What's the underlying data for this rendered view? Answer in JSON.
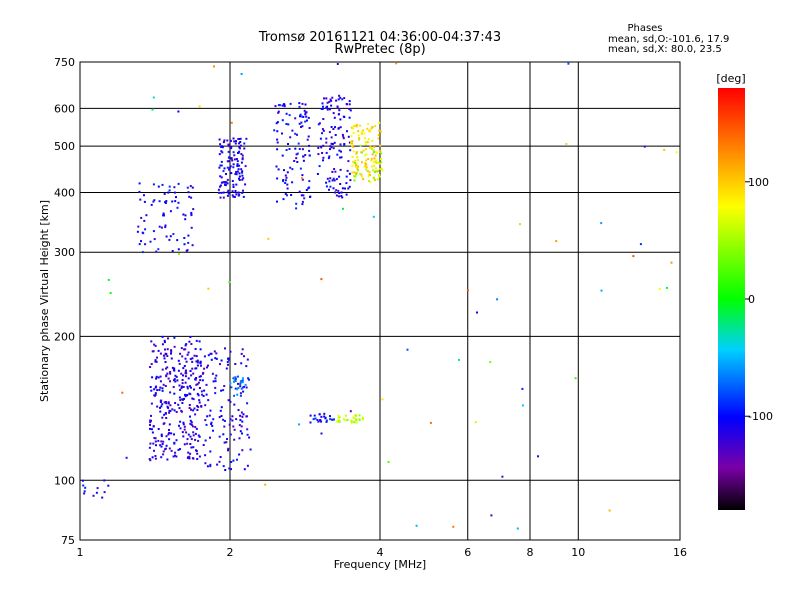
{
  "chart_data": {
    "type": "scatter",
    "title": "Tromsø 20161121 04:36:00-04:37:43",
    "subtitle": "RwPretec (8p)",
    "xlabel": "Frequency [MHz]",
    "ylabel": "Stationary phase Virtual Height [km]",
    "x_scale": "log",
    "y_scale": "log",
    "xlim": [
      1,
      16
    ],
    "ylim": [
      75,
      750
    ],
    "x_ticks": [
      1,
      2,
      4,
      6,
      8,
      10,
      16
    ],
    "y_ticks": [
      75,
      100,
      200,
      300,
      400,
      500,
      600,
      750
    ],
    "grid": true,
    "colorbar": {
      "label": "[deg]",
      "range": [
        -180,
        180
      ],
      "ticks": [
        100,
        0,
        -100
      ]
    },
    "stats": {
      "heading": "Phases",
      "line1": "mean, sd,O:-101.6, 17.9",
      "line2": "mean, sd,X:  80.0, 23.5"
    },
    "point_groups": [
      {
        "x": [
          1.38,
          1.75
        ],
        "y": [
          110,
          200
        ],
        "phase": -115,
        "n": 320
      },
      {
        "x": [
          1.75,
          2.2
        ],
        "y": [
          105,
          190
        ],
        "phase": -110,
        "n": 140
      },
      {
        "x": [
          2.0,
          2.15
        ],
        "y": [
          150,
          165
        ],
        "phase": -70,
        "n": 25
      },
      {
        "x": [
          2.9,
          3.25
        ],
        "y": [
          132,
          138
        ],
        "phase": -100,
        "n": 25
      },
      {
        "x": [
          3.25,
          3.7
        ],
        "y": [
          132,
          137
        ],
        "phase": 60,
        "n": 30
      },
      {
        "x": [
          1.3,
          1.7
        ],
        "y": [
          300,
          420
        ],
        "phase": -105,
        "n": 80
      },
      {
        "x": [
          1.9,
          2.15
        ],
        "y": [
          390,
          520
        ],
        "phase": -110,
        "n": 130
      },
      {
        "x": [
          2.45,
          2.9
        ],
        "y": [
          370,
          620
        ],
        "phase": -105,
        "n": 110
      },
      {
        "x": [
          3.0,
          3.5
        ],
        "y": [
          390,
          640
        ],
        "phase": -110,
        "n": 130
      },
      {
        "x": [
          3.5,
          4.05
        ],
        "y": [
          420,
          560
        ],
        "phase": 90,
        "n": 120
      },
      {
        "x": [
          3.5,
          4.05
        ],
        "y": [
          420,
          520
        ],
        "phase": 45,
        "n": 25
      },
      {
        "x": [
          1.0,
          1.15
        ],
        "y": [
          92,
          100
        ],
        "phase": -110,
        "n": 12
      },
      {
        "x": [
          1.0,
          16
        ],
        "y": [
          75,
          750
        ],
        "phase": 0,
        "n": 60,
        "scattered": true
      }
    ]
  }
}
